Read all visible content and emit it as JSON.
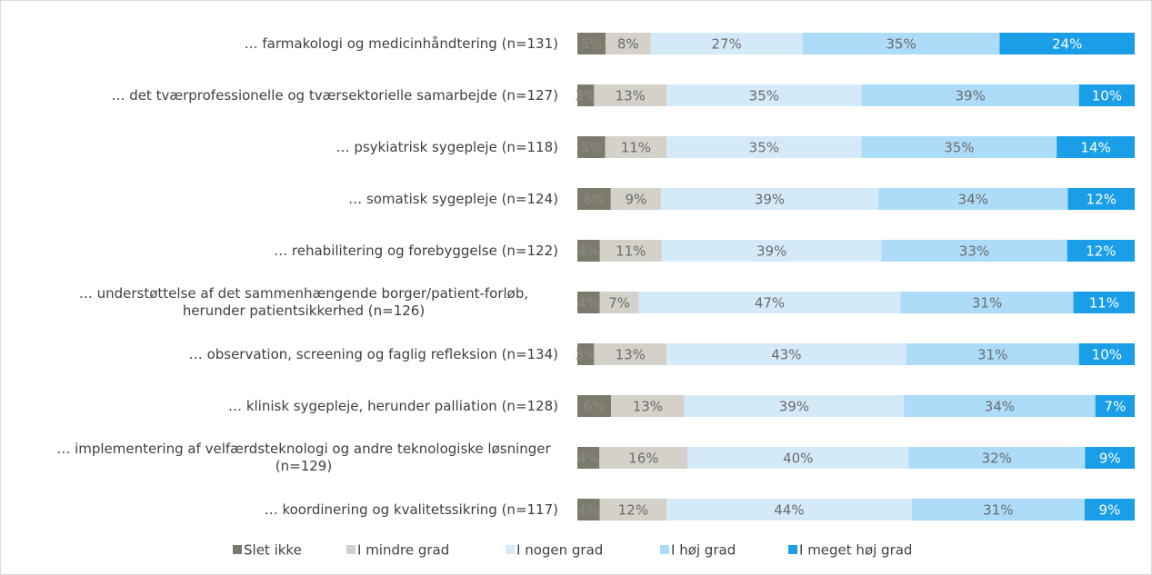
{
  "chart_data": {
    "type": "stacked-bar-horizontal",
    "categories": [
      "… farmakologi og medicinhåndtering (n=131)",
      "… det tværprofessionelle og tværsektorielle samarbejde (n=127)",
      "… psykiatrisk sygepleje (n=118)",
      "… somatisk sygepleje (n=124)",
      "… rehabilitering og forebyggelse (n=122)",
      "… understøttelse af det sammenhængende borger/patient-forløb, herunder patientsikkerhed (n=126)",
      "… observation, screening og faglig refleksion (n=134)",
      "… klinisk sygepleje, herunder palliation (n=128)",
      "… implementering af velfærdsteknologi og andre teknologiske løsninger (n=129)",
      "… koordinering og kvalitetssikring (n=117)"
    ],
    "series": [
      {
        "name": "Slet ikke",
        "color": "#7b7a6c",
        "values": [
          5,
          3,
          5,
          6,
          4,
          4,
          3,
          6,
          4,
          4
        ],
        "value_labels": [
          "5%",
          "3%",
          "5%",
          "6%",
          "4%",
          "4%",
          "3%",
          "6%",
          "4%",
          "4%"
        ]
      },
      {
        "name": "I mindre grad",
        "color": "#d4d1cb",
        "values": [
          8,
          13,
          11,
          9,
          11,
          7,
          13,
          13,
          16,
          12
        ],
        "value_labels": [
          "8%",
          "13%",
          "11%",
          "9%",
          "11%",
          "7%",
          "13%",
          "13%",
          "16%",
          "12%"
        ]
      },
      {
        "name": "I nogen grad",
        "color": "#d5eaf9",
        "values": [
          27,
          35,
          35,
          39,
          39,
          47,
          43,
          39,
          40,
          44
        ],
        "value_labels": [
          "27%",
          "35%",
          "35%",
          "39%",
          "39%",
          "47%",
          "43%",
          "39%",
          "40%",
          "44%"
        ]
      },
      {
        "name": "I høj grad",
        "color": "#addcf9",
        "values": [
          35,
          39,
          35,
          34,
          33,
          31,
          31,
          34,
          32,
          31
        ],
        "value_labels": [
          "35%",
          "39%",
          "35%",
          "34%",
          "33%",
          "31%",
          "31%",
          "34%",
          "32%",
          "31%"
        ]
      },
      {
        "name": "I meget høj grad",
        "color": "#1a9ee8",
        "values": [
          24,
          10,
          14,
          12,
          12,
          11,
          10,
          7,
          9,
          9
        ],
        "value_labels": [
          "24%",
          "10%",
          "14%",
          "12%",
          "12%",
          "11%",
          "10%",
          "7%",
          "9%",
          "9%"
        ]
      }
    ],
    "legend": "bottom"
  }
}
